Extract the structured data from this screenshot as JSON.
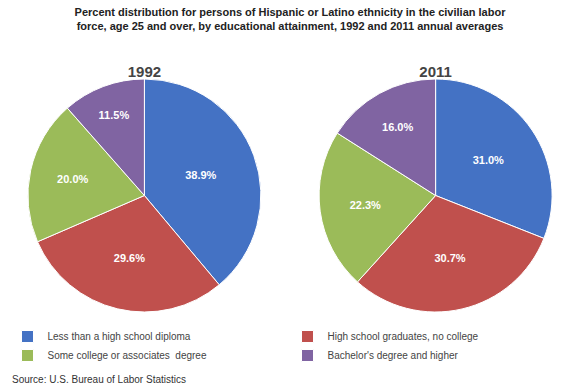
{
  "chart_data": {
    "type": "pie",
    "title": "Percent distribution for persons of Hispanic or Latino ethnicity in the civilian labor\nforce, age 25 and over, by educational attainment, 1992 and 2011 annual averages",
    "categories": [
      "Less than a high school diploma",
      "High school graduates, no college",
      "Some college or associates  degree",
      "Bachelor's degree and higher"
    ],
    "colors": [
      "#4472C4",
      "#C0504D",
      "#9BBB59",
      "#8064A2"
    ],
    "series": [
      {
        "name": "1992",
        "values": [
          38.9,
          29.6,
          20.0,
          11.5
        ],
        "value_labels": [
          "38.9%",
          "29.6%",
          "20.0%",
          "11.5%"
        ]
      },
      {
        "name": "2011",
        "values": [
          31.0,
          30.7,
          22.3,
          16.0
        ],
        "value_labels": [
          "31.0%",
          "30.7%",
          "22.3%",
          "16.0%"
        ]
      }
    ],
    "data_labels": true,
    "annotations": [
      "Source: U.S. Bureau of Labor Statistics"
    ]
  }
}
